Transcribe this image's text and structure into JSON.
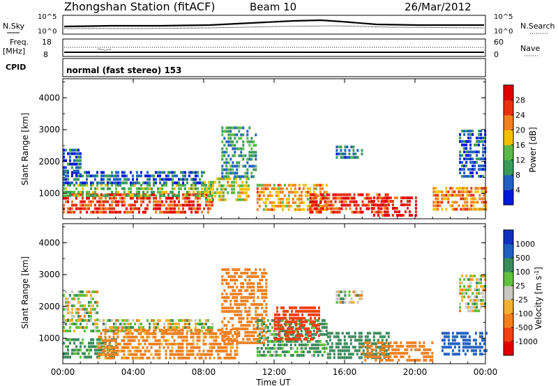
{
  "header": {
    "title": "Zhongshan Station (fitACF)",
    "beam": "Beam 10",
    "date": "26/Mar/2012"
  },
  "params": {
    "nsky_label": "N.Sky",
    "nsky_ticks": [
      "10^5",
      "10^0"
    ],
    "nsearch_label": "N.Search",
    "nsearch_ticks": [
      "10^5",
      "10^0"
    ],
    "freq_label": "Freq.",
    "freq_unit": "[MHz]",
    "freq_ticks": [
      "18",
      "8"
    ],
    "nave_label": "Nave",
    "nave_ticks": [
      "60",
      "0"
    ],
    "cpid_label": "CPID",
    "cpid_value": "normal (fast stereo) 153"
  },
  "colors": {
    "power": [
      "#0018d8",
      "#2060c0",
      "#3a9a5a",
      "#5ab84a",
      "#f0c000",
      "#f08020",
      "#e83010",
      "#e00000"
    ],
    "velocity": [
      "#e00000",
      "#f04010",
      "#f08020",
      "#f0b030",
      "#c8c8c0",
      "#60c040",
      "#3a8a5a",
      "#2060c0",
      "#1030c0"
    ]
  },
  "chart_data": [
    {
      "type": "heatmap",
      "name": "power",
      "ylabel": "Slant Range [km]",
      "yticks": [
        "4000",
        "3000",
        "2000",
        "1000"
      ],
      "ylim": [
        200,
        4600
      ],
      "colorbar_label": "Power [dB]",
      "colorbar_ticks": [
        "28",
        "24",
        "20",
        "16",
        "12",
        "8",
        "4"
      ],
      "echo_regions": [
        {
          "t0": 0.0,
          "t1": 8.5,
          "r0": 400,
          "r1": 1000,
          "power": 26
        },
        {
          "t0": 0.0,
          "t1": 8.5,
          "r0": 900,
          "r1": 1300,
          "power": 14
        },
        {
          "t0": 0.0,
          "t1": 8.0,
          "r0": 1300,
          "r1": 1700,
          "power": 6
        },
        {
          "t0": 0.0,
          "t1": 1.0,
          "r0": 1600,
          "r1": 2400,
          "power": 5
        },
        {
          "t0": 8.0,
          "t1": 10.5,
          "r0": 800,
          "r1": 1500,
          "power": 16
        },
        {
          "t0": 9.0,
          "t1": 11.0,
          "r0": 1500,
          "r1": 3100,
          "power": 9
        },
        {
          "t0": 11.0,
          "t1": 15.0,
          "r0": 500,
          "r1": 1300,
          "power": 20
        },
        {
          "t0": 14.0,
          "t1": 18.5,
          "r0": 400,
          "r1": 1000,
          "power": 27
        },
        {
          "t0": 15.5,
          "t1": 17.0,
          "r0": 2100,
          "r1": 2500,
          "power": 8
        },
        {
          "t0": 17.5,
          "t1": 20.0,
          "r0": 300,
          "r1": 900,
          "power": 28
        },
        {
          "t0": 21.0,
          "t1": 24.0,
          "r0": 500,
          "r1": 1200,
          "power": 22
        },
        {
          "t0": 22.5,
          "t1": 24.0,
          "r0": 1500,
          "r1": 3000,
          "power": 6
        }
      ]
    },
    {
      "type": "heatmap",
      "name": "velocity",
      "xlabel": "Time UT",
      "ylabel": "Slant Range [km]",
      "yticks": [
        "4000",
        "3000",
        "2000",
        "1000"
      ],
      "ylim": [
        200,
        4600
      ],
      "xticks": [
        "00:00",
        "04:00",
        "08:00",
        "12:00",
        "16:00",
        "20:00",
        "00:00"
      ],
      "xlim": [
        0,
        24
      ],
      "colorbar_label": "Velocity [m s",
      "colorbar_unit_sup": "-1",
      "colorbar_unit_end": "]",
      "colorbar_ticks": [
        "1000",
        "500",
        "100",
        "25",
        "-25",
        "-100",
        "-500",
        "-1000"
      ],
      "echo_regions": [
        {
          "t0": 0.0,
          "t1": 2.0,
          "r0": 1600,
          "r1": 2500,
          "velocity": 0
        },
        {
          "t0": 0.0,
          "t1": 8.5,
          "r0": 1200,
          "r1": 1600,
          "velocity": 0
        },
        {
          "t0": 0.0,
          "t1": 3.0,
          "r0": 400,
          "r1": 1000,
          "velocity": 200
        },
        {
          "t0": 2.0,
          "t1": 10.0,
          "r0": 400,
          "r1": 1300,
          "velocity": -200
        },
        {
          "t0": 9.0,
          "t1": 11.5,
          "r0": 900,
          "r1": 3200,
          "velocity": -300
        },
        {
          "t0": 11.0,
          "t1": 15.0,
          "r0": 500,
          "r1": 1600,
          "velocity": 150
        },
        {
          "t0": 12.0,
          "t1": 14.5,
          "r0": 1000,
          "r1": 2000,
          "velocity": -700
        },
        {
          "t0": 15.0,
          "t1": 18.5,
          "r0": 400,
          "r1": 1200,
          "velocity": 250
        },
        {
          "t0": 15.5,
          "t1": 17.0,
          "r0": 2100,
          "r1": 2500,
          "velocity": 0
        },
        {
          "t0": 17.0,
          "t1": 21.0,
          "r0": 300,
          "r1": 900,
          "velocity": -250
        },
        {
          "t0": 21.5,
          "t1": 24.0,
          "r0": 500,
          "r1": 1200,
          "velocity": 700
        },
        {
          "t0": 22.5,
          "t1": 24.0,
          "r0": 1800,
          "r1": 3000,
          "velocity": 0
        }
      ]
    }
  ]
}
